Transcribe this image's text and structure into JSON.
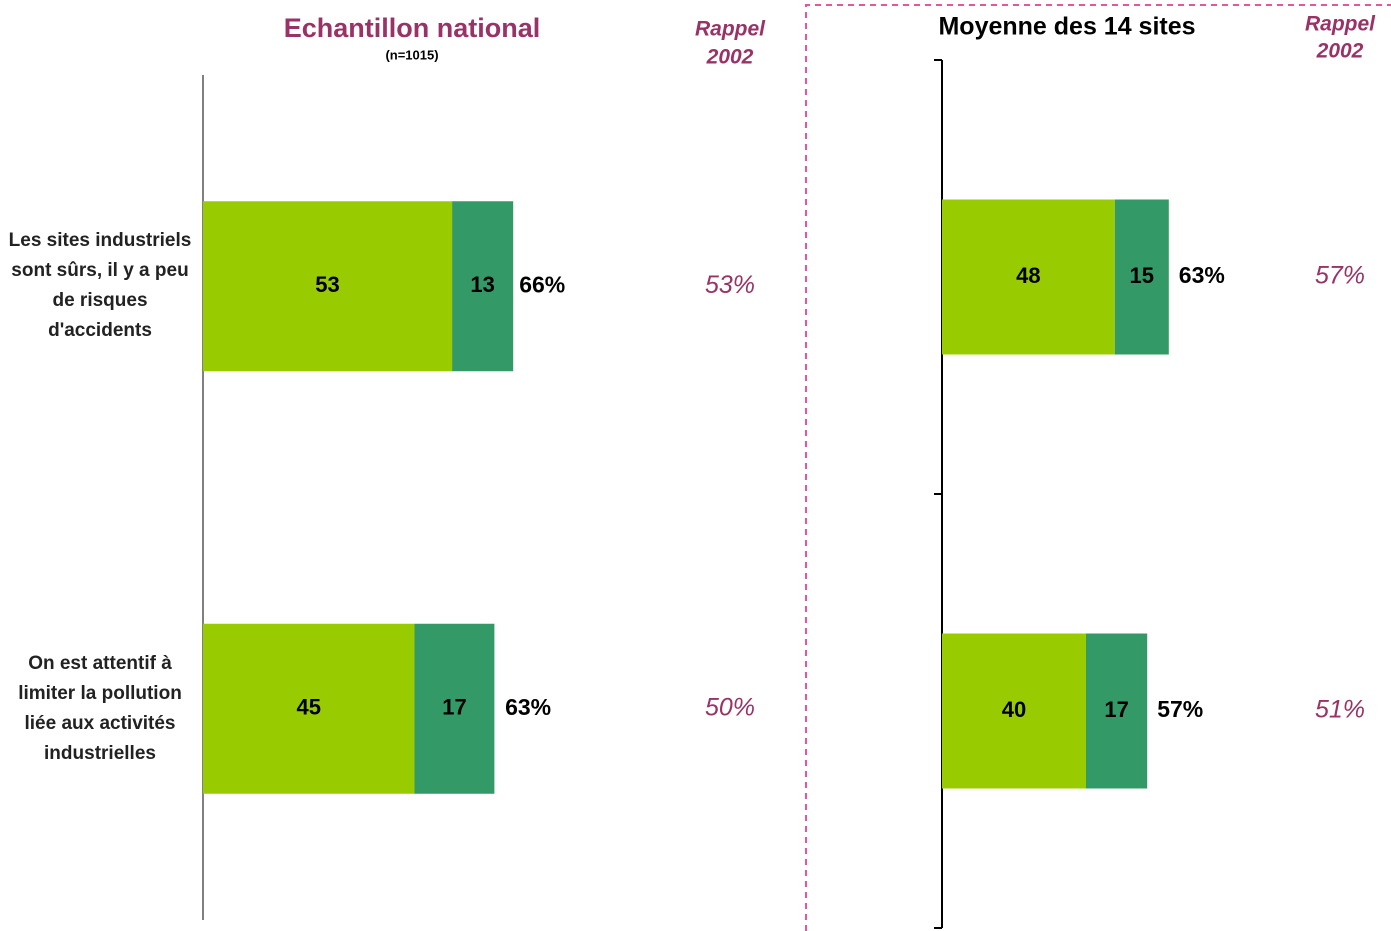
{
  "chart_data": [
    {
      "type": "bar",
      "orientation": "horizontal",
      "stacked": true,
      "title": "Echantillon national",
      "title_color": "#993366",
      "subtitle": "(n=1015)",
      "categories": [
        "Les sites industriels sont sûrs, il y a peu de risques d'accidents",
        "On est attentif à limiter la pollution liée aux activités industrielles"
      ],
      "series": [
        {
          "color": "#99cc00",
          "values": [
            53,
            45
          ]
        },
        {
          "color": "#339966",
          "values": [
            13,
            17
          ]
        }
      ],
      "totals": {
        "values": [
          66,
          63
        ],
        "value_labels": [
          "66%",
          "63%"
        ]
      },
      "recall": {
        "title": [
          "Rappel",
          "2002"
        ],
        "color": "#993366",
        "values": [
          53,
          50
        ],
        "value_labels": [
          "53%",
          "50%"
        ]
      },
      "xlim": [
        0,
        100
      ]
    },
    {
      "type": "bar",
      "orientation": "horizontal",
      "stacked": true,
      "title": "Moyenne des 14 sites",
      "title_color": "#000000",
      "categories": [
        null,
        null
      ],
      "series": [
        {
          "color": "#99cc00",
          "values": [
            48,
            40
          ]
        },
        {
          "color": "#339966",
          "values": [
            15,
            17
          ]
        }
      ],
      "totals": {
        "values": [
          63,
          57
        ],
        "value_labels": [
          "63%",
          "57%"
        ]
      },
      "recall": {
        "title": [
          "Rappel",
          "2002"
        ],
        "color": "#993366",
        "values": [
          57,
          51
        ],
        "value_labels": [
          "57%",
          "51%"
        ]
      },
      "xlim": [
        0,
        100
      ]
    }
  ]
}
